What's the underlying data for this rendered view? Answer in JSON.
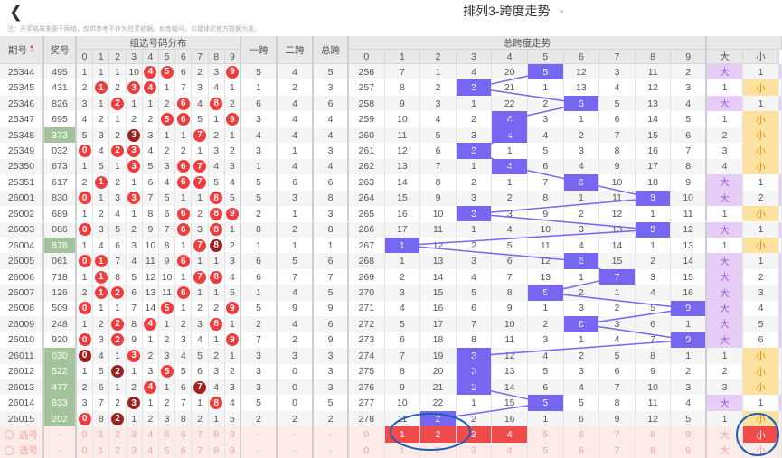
{
  "header": {
    "back_icon": "chevron-left-icon",
    "title": "排列3-跨度走势",
    "title_dropdown_icon": "chevron-down-icon",
    "note": "注：开奖结果来源于网络，仅供参考不作为兑奖依据。如有疑问，以福体彩官方数据为准。"
  },
  "columns": {
    "issue": "期号",
    "number": "奖号",
    "dist_group": "组选号码分布",
    "span1": "一跨",
    "span2": "二跨",
    "total": "总跨",
    "trend_group": "总跨度走势",
    "digits": [
      "0",
      "1",
      "2",
      "3",
      "4",
      "5",
      "6",
      "7",
      "8",
      "9"
    ],
    "big": "大",
    "small": "小"
  },
  "colors": {
    "hit": "#7766f0",
    "ball": "#f03c3c",
    "ball_double": "#9c2222",
    "group_highlight": "#a3c49a",
    "big_bg": "#e6cdf8",
    "small_bg": "#fde29f",
    "select_row_bg": "#fdebe7",
    "select_highlight": "#f04a4a",
    "annotation": "#1a5fb4"
  },
  "rows": [
    {
      "issue": "25344",
      "number": "495",
      "green": false,
      "dist": [
        1,
        1,
        1,
        10,
        4,
        5,
        6,
        2,
        3,
        9
      ],
      "hits": [
        4,
        5,
        9
      ],
      "double": null,
      "span1": "5",
      "span2": "4",
      "total": "5",
      "trend": [
        256,
        7,
        1,
        4,
        20,
        5,
        12,
        3,
        11,
        2
      ],
      "hit": 5,
      "big": "大",
      "small": "1"
    },
    {
      "issue": "25345",
      "number": "431",
      "green": false,
      "dist": [
        2,
        1,
        2,
        3,
        4,
        1,
        7,
        3,
        4,
        1
      ],
      "hits": [
        1,
        3,
        4
      ],
      "double": null,
      "span1": "1",
      "span2": "2",
      "total": "3",
      "trend": [
        257,
        8,
        2,
        3,
        21,
        1,
        13,
        4,
        12,
        3
      ],
      "hit": 3,
      "big": "1",
      "small": "小"
    },
    {
      "issue": "25346",
      "number": "826",
      "green": false,
      "dist": [
        3,
        1,
        2,
        1,
        1,
        2,
        6,
        4,
        8,
        2
      ],
      "hits": [
        2,
        6,
        8
      ],
      "double": null,
      "span1": "6",
      "span2": "4",
      "total": "6",
      "trend": [
        258,
        9,
        3,
        1,
        22,
        2,
        6,
        5,
        13,
        4
      ],
      "hit": 6,
      "big": "大",
      "small": "1"
    },
    {
      "issue": "25347",
      "number": "695",
      "green": false,
      "dist": [
        4,
        2,
        1,
        2,
        2,
        5,
        6,
        5,
        1,
        9
      ],
      "hits": [
        5,
        6,
        9
      ],
      "double": null,
      "span1": "3",
      "span2": "4",
      "total": "4",
      "trend": [
        259,
        10,
        4,
        2,
        4,
        3,
        1,
        6,
        14,
        5
      ],
      "hit": 4,
      "big": "1",
      "small": "小"
    },
    {
      "issue": "25348",
      "number": "373",
      "green": true,
      "dist": [
        5,
        3,
        2,
        3,
        3,
        1,
        1,
        7,
        2,
        1
      ],
      "hits": [
        7
      ],
      "double": 3,
      "span1": "4",
      "span2": "4",
      "total": "4",
      "trend": [
        260,
        11,
        5,
        3,
        4,
        4,
        2,
        7,
        15,
        6
      ],
      "hit": 4,
      "big": "2",
      "small": "小"
    },
    {
      "issue": "25349",
      "number": "032",
      "green": false,
      "dist": [
        0,
        4,
        2,
        3,
        4,
        2,
        2,
        1,
        3,
        2
      ],
      "hits": [
        0,
        2,
        3
      ],
      "double": null,
      "span1": "3",
      "span2": "1",
      "total": "3",
      "trend": [
        261,
        12,
        6,
        3,
        1,
        5,
        3,
        8,
        16,
        7
      ],
      "hit": 3,
      "big": "3",
      "small": "小"
    },
    {
      "issue": "25350",
      "number": "673",
      "green": false,
      "dist": [
        1,
        5,
        1,
        3,
        5,
        3,
        6,
        7,
        4,
        3
      ],
      "hits": [
        3,
        6,
        7
      ],
      "double": null,
      "span1": "1",
      "span2": "4",
      "total": "4",
      "trend": [
        262,
        13,
        7,
        1,
        4,
        6,
        4,
        9,
        17,
        8
      ],
      "hit": 4,
      "big": "4",
      "small": "小"
    },
    {
      "issue": "25351",
      "number": "617",
      "green": false,
      "dist": [
        2,
        1,
        2,
        1,
        6,
        4,
        6,
        7,
        5,
        4
      ],
      "hits": [
        1,
        6,
        7
      ],
      "double": null,
      "span1": "5",
      "span2": "6",
      "total": "6",
      "trend": [
        263,
        14,
        8,
        2,
        1,
        7,
        6,
        10,
        18,
        9
      ],
      "hit": 6,
      "big": "大",
      "small": "1"
    },
    {
      "issue": "26001",
      "number": "830",
      "green": false,
      "dist": [
        0,
        1,
        3,
        3,
        7,
        5,
        1,
        1,
        8,
        5
      ],
      "hits": [
        0,
        3,
        8
      ],
      "double": null,
      "span1": "5",
      "span2": "3",
      "total": "8",
      "trend": [
        264,
        15,
        9,
        3,
        2,
        8,
        1,
        11,
        8,
        10
      ],
      "hit": 8,
      "big": "大",
      "small": "2"
    },
    {
      "issue": "26002",
      "number": "689",
      "green": false,
      "dist": [
        1,
        2,
        4,
        1,
        8,
        6,
        6,
        2,
        8,
        9
      ],
      "hits": [
        6,
        8,
        9
      ],
      "double": null,
      "span1": "2",
      "span2": "1",
      "total": "3",
      "trend": [
        265,
        16,
        10,
        3,
        3,
        9,
        2,
        12,
        1,
        11
      ],
      "hit": 3,
      "big": "1",
      "small": "小"
    },
    {
      "issue": "26003",
      "number": "086",
      "green": false,
      "dist": [
        0,
        3,
        5,
        2,
        9,
        7,
        6,
        3,
        8,
        1
      ],
      "hits": [
        0,
        6,
        8
      ],
      "double": null,
      "span1": "8",
      "span2": "2",
      "total": "8",
      "trend": [
        266,
        17,
        11,
        1,
        4,
        10,
        3,
        13,
        8,
        12
      ],
      "hit": 8,
      "big": "大",
      "small": "1"
    },
    {
      "issue": "26004",
      "number": "878",
      "green": true,
      "dist": [
        1,
        4,
        6,
        3,
        10,
        8,
        1,
        7,
        8,
        2
      ],
      "hits": [
        7
      ],
      "double": 8,
      "span1": "1",
      "span2": "1",
      "total": "1",
      "trend": [
        267,
        1,
        12,
        2,
        5,
        11,
        4,
        14,
        1,
        13
      ],
      "hit": 1,
      "big": "1",
      "small": "小"
    },
    {
      "issue": "26005",
      "number": "061",
      "green": false,
      "dist": [
        0,
        1,
        7,
        4,
        11,
        9,
        6,
        1,
        1,
        3
      ],
      "hits": [
        0,
        1,
        6
      ],
      "double": null,
      "span1": "6",
      "span2": "5",
      "total": "6",
      "trend": [
        268,
        1,
        13,
        3,
        6,
        12,
        6,
        15,
        2,
        14
      ],
      "hit": 6,
      "big": "大",
      "small": "1"
    },
    {
      "issue": "26006",
      "number": "718",
      "green": false,
      "dist": [
        1,
        1,
        8,
        5,
        12,
        10,
        1,
        7,
        8,
        4
      ],
      "hits": [
        1,
        7,
        8
      ],
      "double": null,
      "span1": "6",
      "span2": "7",
      "total": "7",
      "trend": [
        269,
        2,
        14,
        4,
        7,
        13,
        1,
        7,
        3,
        15
      ],
      "hit": 7,
      "big": "大",
      "small": "2"
    },
    {
      "issue": "26007",
      "number": "126",
      "green": false,
      "dist": [
        2,
        1,
        2,
        6,
        13,
        11,
        6,
        1,
        1,
        5
      ],
      "hits": [
        1,
        2,
        6
      ],
      "double": null,
      "span1": "1",
      "span2": "4",
      "total": "5",
      "trend": [
        270,
        3,
        15,
        5,
        8,
        5,
        2,
        1,
        4,
        16
      ],
      "hit": 5,
      "big": "大",
      "small": "3"
    },
    {
      "issue": "26008",
      "number": "509",
      "green": false,
      "dist": [
        0,
        1,
        1,
        7,
        14,
        5,
        1,
        2,
        2,
        9
      ],
      "hits": [
        0,
        5,
        9
      ],
      "double": null,
      "span1": "5",
      "span2": "9",
      "total": "9",
      "trend": [
        271,
        4,
        16,
        6,
        9,
        1,
        3,
        2,
        5,
        9
      ],
      "hit": 9,
      "big": "大",
      "small": "4"
    },
    {
      "issue": "26009",
      "number": "248",
      "green": false,
      "dist": [
        1,
        2,
        2,
        8,
        4,
        1,
        2,
        3,
        8,
        1
      ],
      "hits": [
        2,
        4,
        8
      ],
      "double": null,
      "span1": "2",
      "span2": "4",
      "total": "6",
      "trend": [
        272,
        5,
        17,
        7,
        10,
        2,
        6,
        3,
        6,
        1
      ],
      "hit": 6,
      "big": "大",
      "small": "5"
    },
    {
      "issue": "26010",
      "number": "920",
      "green": false,
      "dist": [
        0,
        3,
        2,
        9,
        1,
        2,
        3,
        4,
        1,
        9
      ],
      "hits": [
        0,
        2,
        9
      ],
      "double": null,
      "span1": "7",
      "span2": "2",
      "total": "9",
      "trend": [
        273,
        6,
        18,
        8,
        11,
        3,
        1,
        4,
        7,
        9
      ],
      "hit": 9,
      "big": "大",
      "small": "6"
    },
    {
      "issue": "26011",
      "number": "030",
      "green": true,
      "dist": [
        0,
        4,
        1,
        3,
        2,
        3,
        4,
        5,
        2,
        1
      ],
      "hits": [
        3
      ],
      "double": 0,
      "span1": "3",
      "span2": "3",
      "total": "3",
      "trend": [
        274,
        7,
        19,
        3,
        12,
        4,
        2,
        5,
        8,
        1
      ],
      "hit": 3,
      "big": "1",
      "small": "小"
    },
    {
      "issue": "26012",
      "number": "522",
      "green": true,
      "dist": [
        1,
        5,
        2,
        1,
        3,
        5,
        5,
        6,
        3,
        2
      ],
      "hits": [
        5
      ],
      "double": 2,
      "span1": "3",
      "span2": "0",
      "total": "3",
      "trend": [
        275,
        8,
        20,
        3,
        13,
        5,
        3,
        6,
        9,
        2
      ],
      "hit": 3,
      "big": "2",
      "small": "小"
    },
    {
      "issue": "26013",
      "number": "477",
      "green": true,
      "dist": [
        2,
        6,
        1,
        2,
        4,
        1,
        6,
        7,
        4,
        3
      ],
      "hits": [
        4
      ],
      "double": 7,
      "span1": "3",
      "span2": "0",
      "total": "3",
      "trend": [
        276,
        9,
        21,
        3,
        14,
        6,
        4,
        7,
        10,
        3
      ],
      "hit": 3,
      "big": "3",
      "small": "小"
    },
    {
      "issue": "26014",
      "number": "833",
      "green": true,
      "dist": [
        3,
        7,
        2,
        3,
        1,
        2,
        7,
        1,
        8,
        4
      ],
      "hits": [
        8
      ],
      "double": 3,
      "span1": "5",
      "span2": "0",
      "total": "5",
      "trend": [
        277,
        10,
        22,
        1,
        15,
        5,
        5,
        8,
        11,
        4
      ],
      "hit": 5,
      "big": "大",
      "small": "1"
    },
    {
      "issue": "26015",
      "number": "202",
      "green": true,
      "dist": [
        0,
        8,
        2,
        1,
        2,
        3,
        8,
        2,
        1,
        5
      ],
      "hits": [
        0
      ],
      "double": 2,
      "span1": "2",
      "span2": "2",
      "total": "2",
      "trend": [
        278,
        11,
        2,
        2,
        16,
        1,
        6,
        9,
        12,
        5
      ],
      "hit": 2,
      "big": "1",
      "small": "小"
    }
  ],
  "select_rows": [
    {
      "label": "选号",
      "dash": "-",
      "digits": [
        "0",
        "1",
        "2",
        "3",
        "4",
        "5",
        "6",
        "7",
        "8",
        "9"
      ],
      "trend": [
        "0",
        "1",
        "2",
        "3",
        "4",
        "5",
        "6",
        "7",
        "8",
        "9"
      ],
      "trend_selected": [
        1,
        2,
        3,
        4
      ],
      "big": "大",
      "small": "小",
      "small_selected": true
    },
    {
      "label": "选号",
      "dash": "-",
      "digits": [
        "0",
        "1",
        "2",
        "3",
        "4",
        "5",
        "6",
        "7",
        "8",
        "9"
      ],
      "trend": [
        "0",
        "1",
        "2",
        "3",
        "4",
        "5",
        "6",
        "7",
        "8",
        "9"
      ],
      "trend_selected": [],
      "big": "大",
      "small": "小",
      "small_selected": false
    }
  ]
}
